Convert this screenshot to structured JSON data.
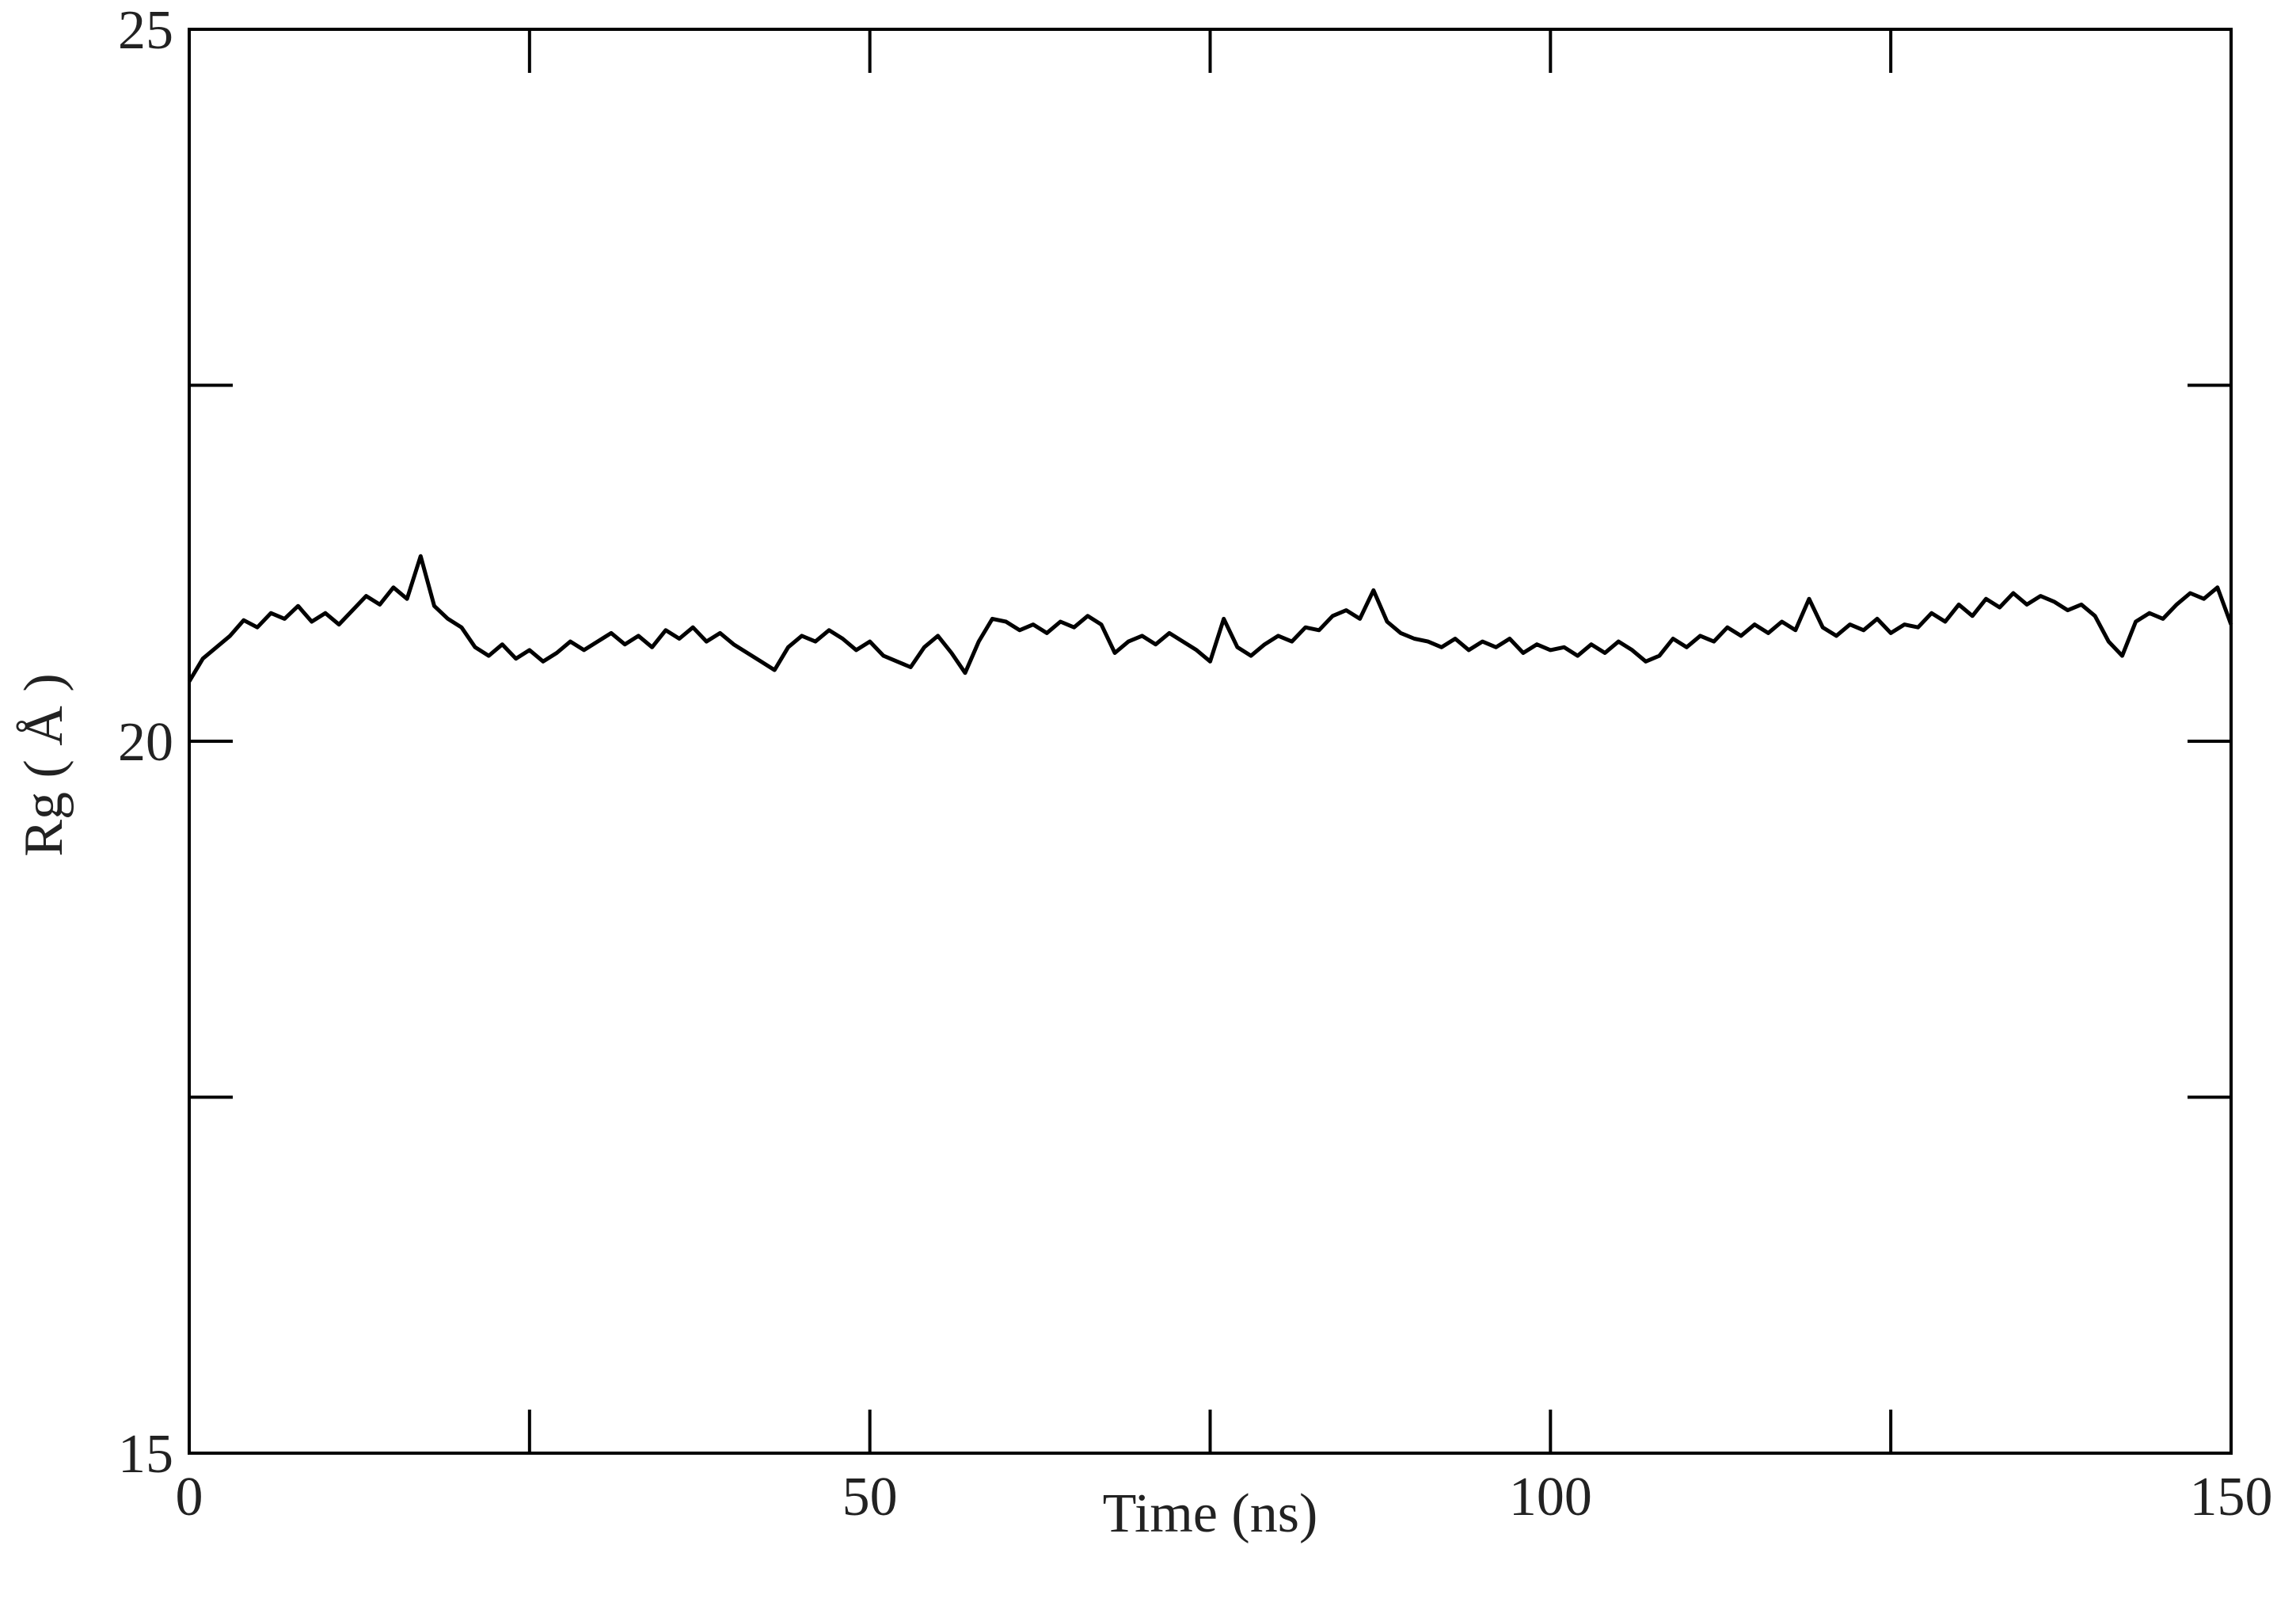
{
  "chart_data": {
    "type": "line",
    "xlabel": "Time (ns)",
    "ylabel": "Rg ( Å )",
    "xlim": [
      0,
      150
    ],
    "ylim": [
      15,
      25
    ],
    "xticks": [
      0,
      50,
      100,
      150
    ],
    "xminorticks": [
      25,
      75,
      125
    ],
    "yticks": [
      15,
      20,
      25
    ],
    "yminorticks": [
      17.5,
      22.5
    ],
    "grid": false,
    "x": [
      0,
      1,
      2,
      3,
      4,
      5,
      6,
      7,
      8,
      9,
      10,
      11,
      12,
      13,
      14,
      15,
      16,
      17,
      18,
      19,
      20,
      21,
      22,
      23,
      24,
      25,
      26,
      27,
      28,
      29,
      30,
      31,
      32,
      33,
      34,
      35,
      36,
      37,
      38,
      39,
      40,
      41,
      42,
      43,
      44,
      45,
      46,
      47,
      48,
      49,
      50,
      51,
      52,
      53,
      54,
      55,
      56,
      57,
      58,
      59,
      60,
      61,
      62,
      63,
      64,
      65,
      66,
      67,
      68,
      69,
      70,
      71,
      72,
      73,
      74,
      75,
      76,
      77,
      78,
      79,
      80,
      81,
      82,
      83,
      84,
      85,
      86,
      87,
      88,
      89,
      90,
      91,
      92,
      93,
      94,
      95,
      96,
      97,
      98,
      99,
      100,
      101,
      102,
      103,
      104,
      105,
      106,
      107,
      108,
      109,
      110,
      111,
      112,
      113,
      114,
      115,
      116,
      117,
      118,
      119,
      120,
      121,
      122,
      123,
      124,
      125,
      126,
      127,
      128,
      129,
      130,
      131,
      132,
      133,
      134,
      135,
      136,
      137,
      138,
      139,
      140,
      141,
      142,
      143,
      144,
      145,
      146,
      147,
      148,
      149,
      150
    ],
    "series": [
      {
        "color": "#000000",
        "values": [
          20.42,
          20.58,
          20.66,
          20.74,
          20.85,
          20.8,
          20.9,
          20.86,
          20.95,
          20.84,
          20.9,
          20.82,
          20.92,
          21.02,
          20.96,
          21.08,
          21.0,
          21.3,
          20.95,
          20.86,
          20.8,
          20.66,
          20.6,
          20.68,
          20.58,
          20.64,
          20.56,
          20.62,
          20.7,
          20.64,
          20.7,
          20.76,
          20.68,
          20.74,
          20.66,
          20.78,
          20.72,
          20.8,
          20.7,
          20.76,
          20.68,
          20.62,
          20.56,
          20.5,
          20.66,
          20.74,
          20.7,
          20.78,
          20.72,
          20.64,
          20.7,
          20.6,
          20.56,
          20.52,
          20.66,
          20.74,
          20.62,
          20.48,
          20.7,
          20.86,
          20.84,
          20.78,
          20.82,
          20.76,
          20.84,
          20.8,
          20.88,
          20.82,
          20.62,
          20.7,
          20.74,
          20.68,
          20.76,
          20.7,
          20.64,
          20.56,
          20.86,
          20.66,
          20.6,
          20.68,
          20.74,
          20.7,
          20.8,
          20.78,
          20.88,
          20.92,
          20.86,
          21.06,
          20.84,
          20.76,
          20.72,
          20.7,
          20.66,
          20.72,
          20.64,
          20.7,
          20.66,
          20.72,
          20.62,
          20.68,
          20.64,
          20.66,
          20.6,
          20.68,
          20.62,
          20.7,
          20.64,
          20.56,
          20.6,
          20.72,
          20.66,
          20.74,
          20.7,
          20.8,
          20.74,
          20.82,
          20.76,
          20.84,
          20.78,
          21.0,
          20.8,
          20.74,
          20.82,
          20.78,
          20.86,
          20.76,
          20.82,
          20.8,
          20.9,
          20.84,
          20.96,
          20.88,
          21.0,
          20.94,
          21.04,
          20.96,
          21.02,
          20.98,
          20.92,
          20.96,
          20.88,
          20.7,
          20.6,
          20.84,
          20.9,
          20.86,
          20.96,
          21.04,
          21.0,
          21.08,
          20.82
        ]
      }
    ]
  }
}
